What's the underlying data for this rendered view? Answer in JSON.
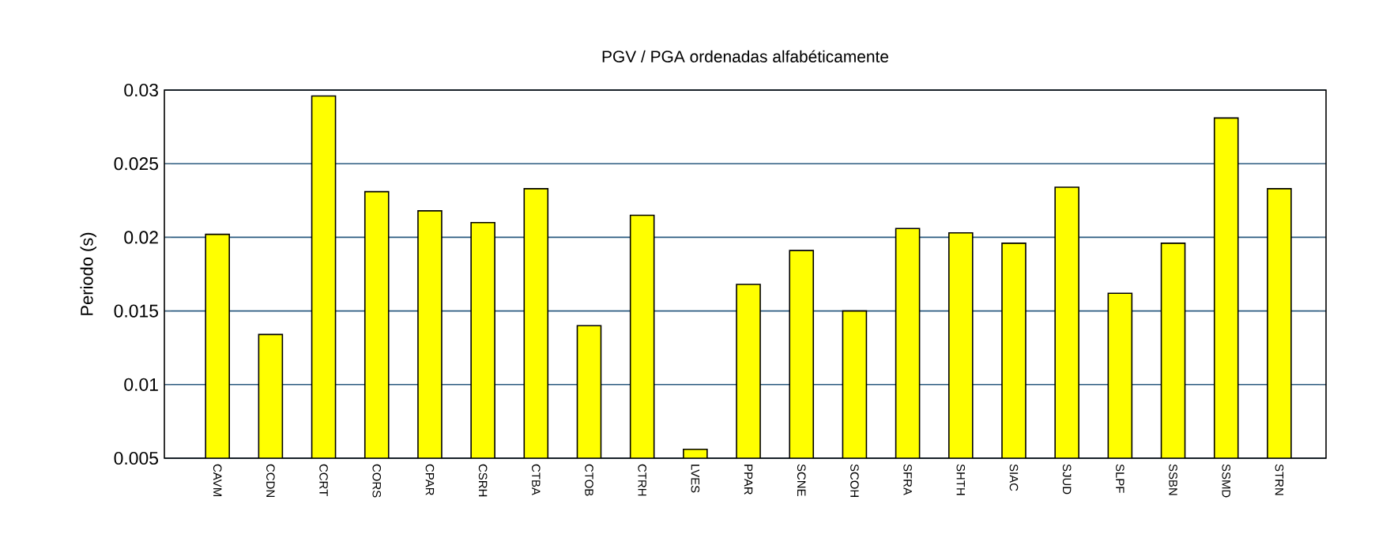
{
  "chart_data": {
    "type": "bar",
    "title": "PGV / PGA ordenadas alfabéticamente",
    "ylabel": "Periodo (s)",
    "categories": [
      "CAVM",
      "CCDN",
      "CCRT",
      "CORS",
      "CPAR",
      "CSRH",
      "CTBA",
      "CTOB",
      "CTRH",
      "LVES",
      "PPAR",
      "SCNE",
      "SCOH",
      "SFRA",
      "SHTH",
      "SIAC",
      "SJUD",
      "SLPF",
      "SSBN",
      "SSMD",
      "STRN"
    ],
    "values": [
      0.0202,
      0.0134,
      0.0296,
      0.0231,
      0.0218,
      0.021,
      0.0233,
      0.014,
      0.0215,
      0.0056,
      0.0168,
      0.0191,
      0.015,
      0.0206,
      0.0203,
      0.0196,
      0.0234,
      0.0162,
      0.0196,
      0.0281,
      0.0233
    ],
    "color": "#ffff00",
    "ylim": [
      0.005,
      0.03
    ],
    "yticks": [
      0.005,
      0.01,
      0.015,
      0.02,
      0.025,
      0.03
    ],
    "grid": "y"
  }
}
